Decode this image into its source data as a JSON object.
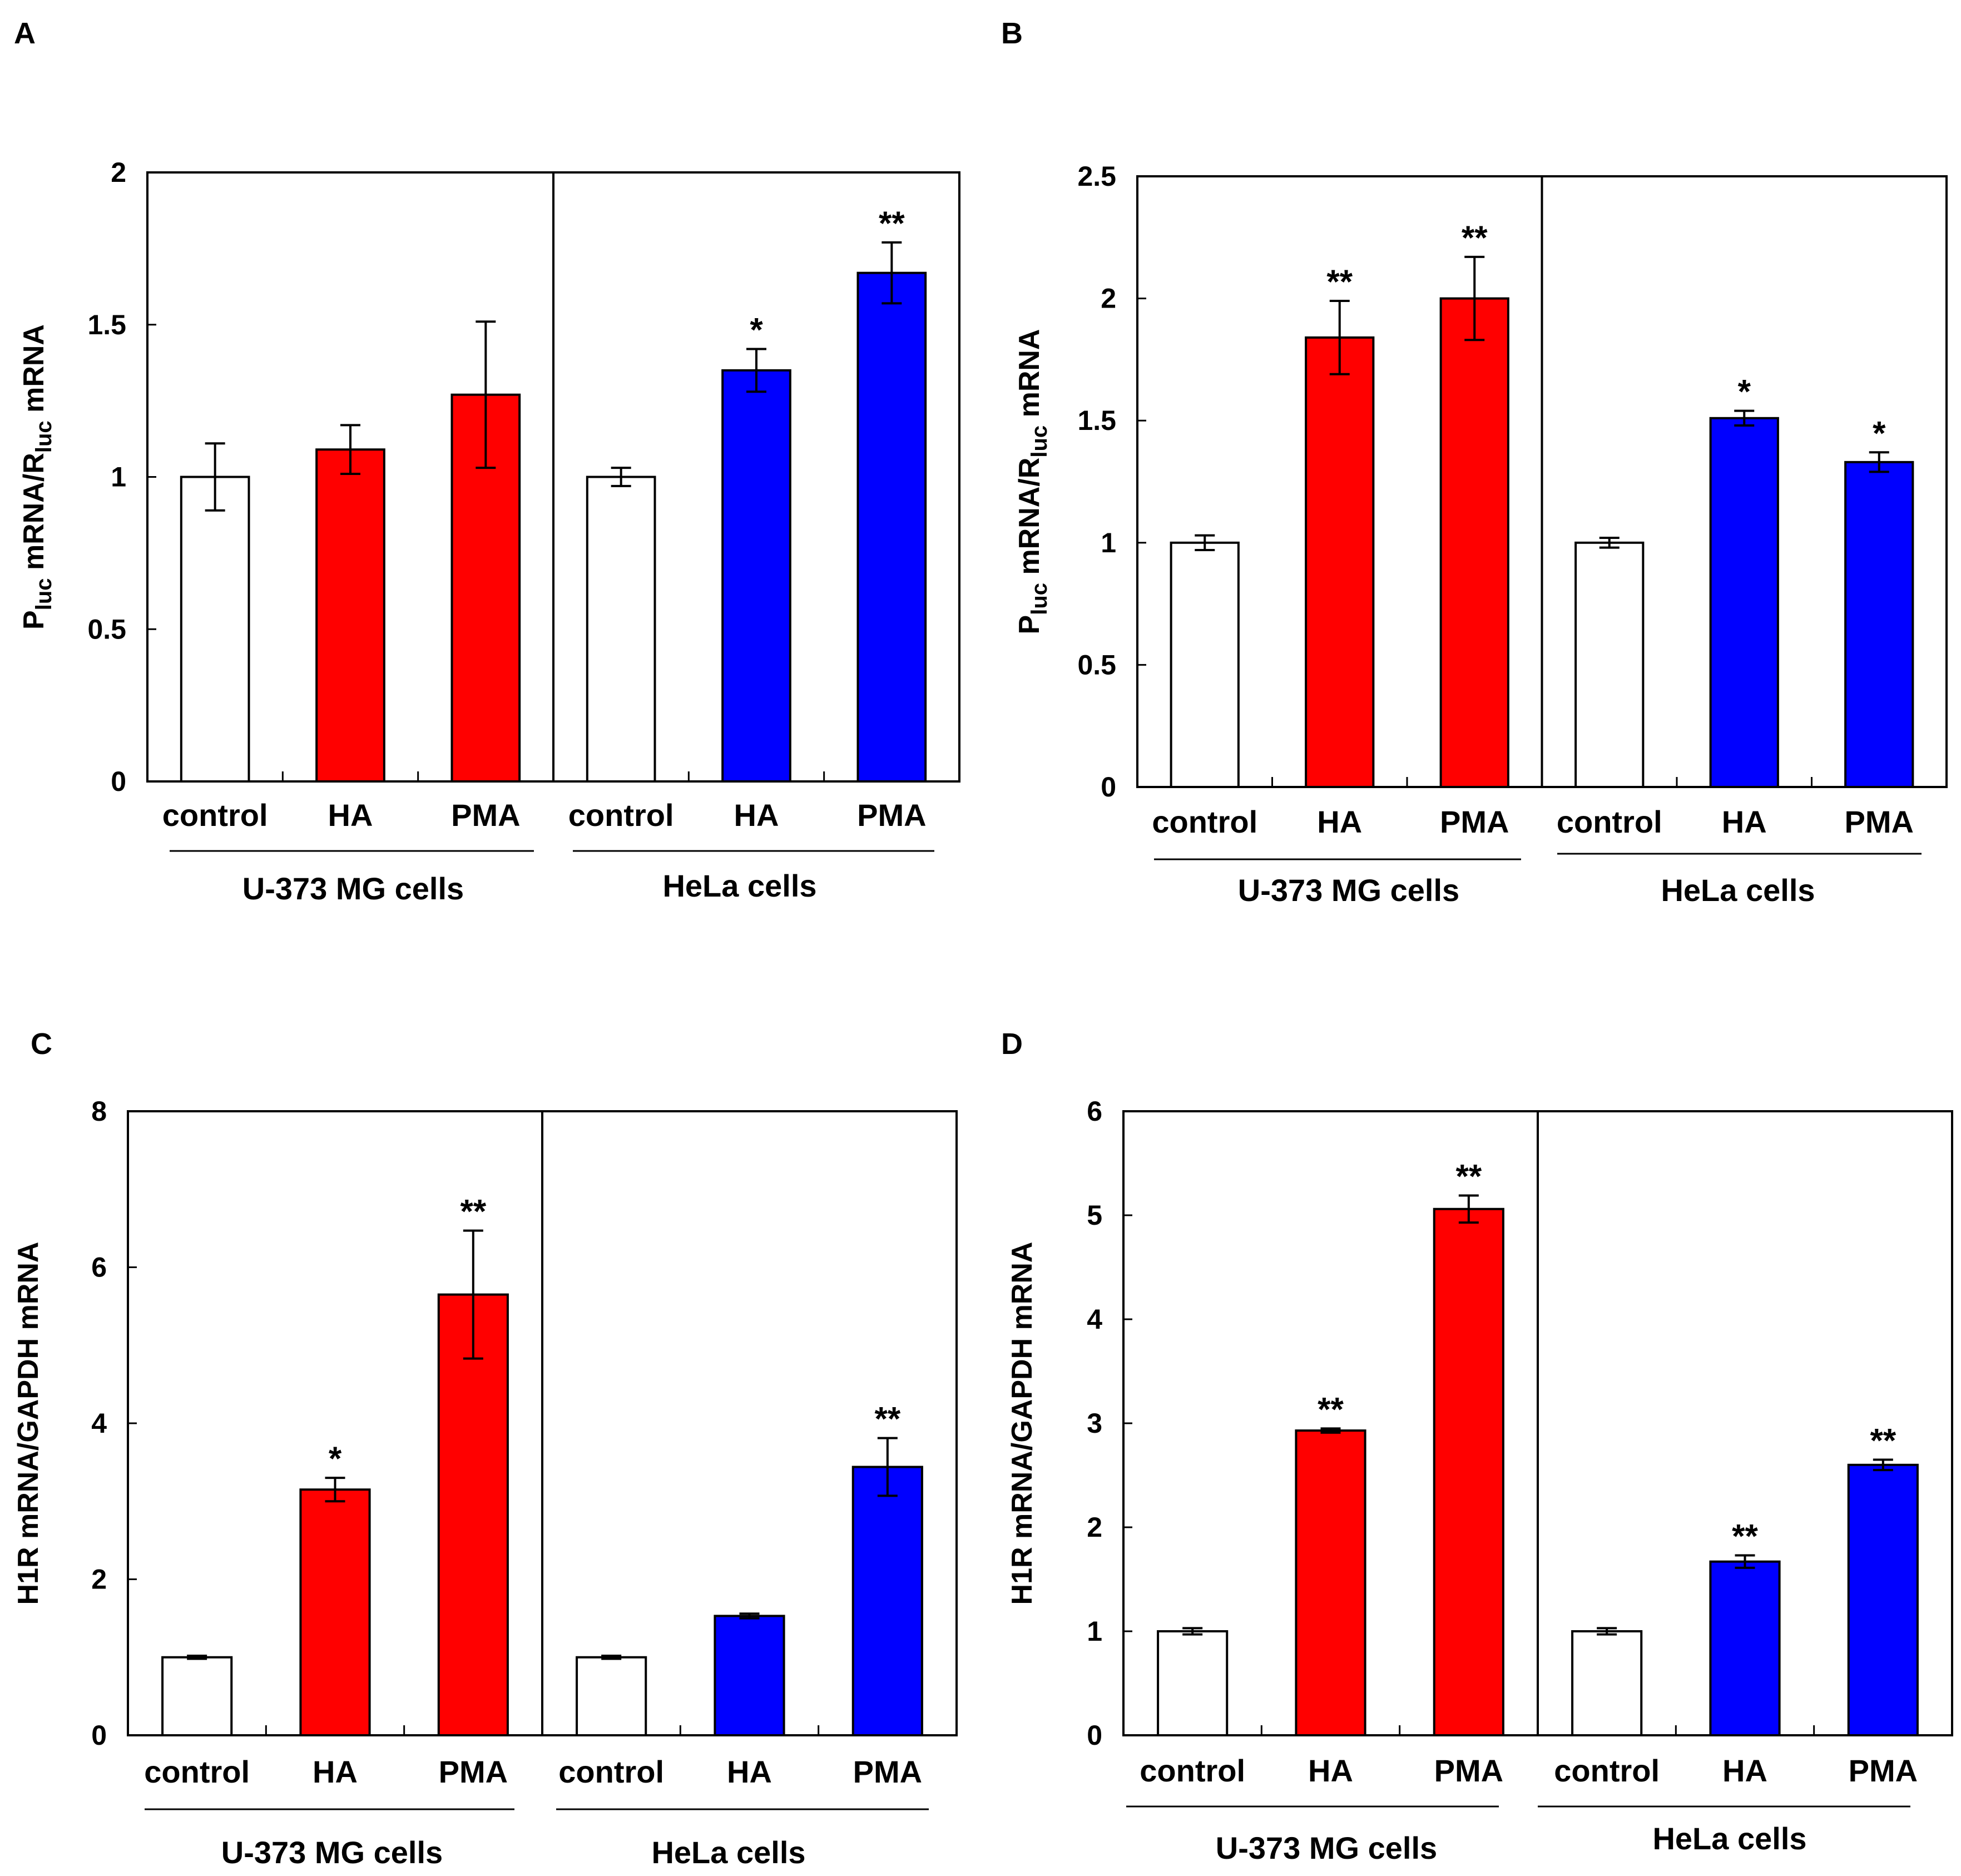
{
  "colors": {
    "control": "#ffffff",
    "u373": "#ff0000",
    "hela": "#0000ff",
    "axis": "#000000"
  },
  "chart_data": [
    {
      "panel": "A",
      "type": "bar",
      "ylabel": {
        "p": "P",
        "p_sub": "luc",
        "mid": " mRNA/R",
        "r_sub": "luc",
        "end": " mRNA"
      },
      "ylim": [
        0,
        2
      ],
      "yticks": [
        0,
        0.5,
        1,
        1.5,
        2
      ],
      "ytick_labels": [
        "0",
        "0.5",
        "1",
        "1.5",
        "2"
      ],
      "groups": [
        {
          "name": "U-373 MG cells",
          "categories": [
            "control",
            "HA",
            "PMA"
          ],
          "values": [
            1.0,
            1.09,
            1.27
          ],
          "errors": [
            0.11,
            0.08,
            0.24
          ],
          "significance": [
            "",
            "",
            ""
          ]
        },
        {
          "name": "HeLa cells",
          "categories": [
            "control",
            "HA",
            "PMA"
          ],
          "values": [
            1.0,
            1.35,
            1.67
          ],
          "errors": [
            0.03,
            0.07,
            0.1
          ],
          "significance": [
            "",
            "*",
            "**"
          ]
        }
      ]
    },
    {
      "panel": "B",
      "type": "bar",
      "ylabel": {
        "p": "P",
        "p_sub": "luc",
        "mid": " mRNA/R",
        "r_sub": "luc",
        "end": " mRNA"
      },
      "ylim": [
        0,
        2.5
      ],
      "yticks": [
        0,
        0.5,
        1,
        1.5,
        2,
        2.5
      ],
      "ytick_labels": [
        "0",
        "0.5",
        "1",
        "1.5",
        "2",
        "2.5"
      ],
      "groups": [
        {
          "name": "U-373 MG cells",
          "categories": [
            "control",
            "HA",
            "PMA"
          ],
          "values": [
            1.0,
            1.84,
            2.0
          ],
          "errors": [
            0.03,
            0.15,
            0.17
          ],
          "significance": [
            "",
            "**",
            "**"
          ]
        },
        {
          "name": "HeLa cells",
          "categories": [
            "control",
            "HA",
            "PMA"
          ],
          "values": [
            1.0,
            1.51,
            1.33
          ],
          "errors": [
            0.02,
            0.03,
            0.04
          ],
          "significance": [
            "",
            "*",
            "*"
          ]
        }
      ]
    },
    {
      "panel": "C",
      "type": "bar",
      "ylabel": {
        "text": "H1R mRNA/GAPDH mRNA"
      },
      "ylim": [
        0,
        8
      ],
      "yticks": [
        0,
        2,
        4,
        6,
        8
      ],
      "ytick_labels": [
        "0",
        "2",
        "4",
        "6",
        "8"
      ],
      "groups": [
        {
          "name": "U-373 MG cells",
          "categories": [
            "control",
            "HA",
            "PMA"
          ],
          "values": [
            1.0,
            3.15,
            5.65
          ],
          "errors": [
            0.02,
            0.15,
            0.82
          ],
          "significance": [
            "",
            "*",
            "**"
          ]
        },
        {
          "name": "HeLa cells",
          "categories": [
            "control",
            "HA",
            "PMA"
          ],
          "values": [
            1.0,
            1.53,
            3.44
          ],
          "errors": [
            0.02,
            0.03,
            0.37
          ],
          "significance": [
            "",
            "",
            "**"
          ]
        }
      ]
    },
    {
      "panel": "D",
      "type": "bar",
      "ylabel": {
        "text": "H1R mRNA/GAPDH mRNA"
      },
      "ylim": [
        0,
        6
      ],
      "yticks": [
        0,
        1,
        2,
        3,
        4,
        5,
        6
      ],
      "ytick_labels": [
        "0",
        "1",
        "2",
        "3",
        "4",
        "5",
        "6"
      ],
      "groups": [
        {
          "name": "U-373 MG cells",
          "categories": [
            "control",
            "HA",
            "PMA"
          ],
          "values": [
            1.0,
            2.93,
            5.06
          ],
          "errors": [
            0.03,
            0.02,
            0.13
          ],
          "significance": [
            "",
            "**",
            "**"
          ]
        },
        {
          "name": "HeLa cells",
          "categories": [
            "control",
            "HA",
            "PMA"
          ],
          "values": [
            1.0,
            1.67,
            2.6
          ],
          "errors": [
            0.03,
            0.06,
            0.05
          ],
          "significance": [
            "",
            "**",
            "**"
          ]
        }
      ]
    }
  ]
}
